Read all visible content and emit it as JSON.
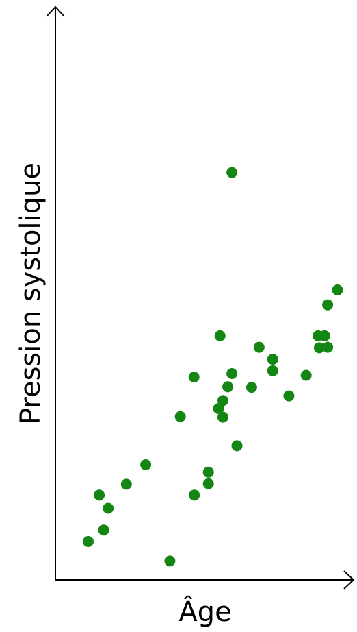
{
  "chart_data": {
    "type": "scatter",
    "title": "",
    "xlabel": "Âge",
    "ylabel": "Pression systolique",
    "xlim": [
      0,
      100
    ],
    "ylim": [
      0,
      100
    ],
    "grid": false,
    "legend": "none",
    "ticks": "none",
    "marker_color": "#138613",
    "axis_color": "#000000",
    "series": [
      {
        "points": [
          [
            11.0,
            6.7
          ],
          [
            16.2,
            8.7
          ],
          [
            14.7,
            14.8
          ],
          [
            17.7,
            12.5
          ],
          [
            23.8,
            16.7
          ],
          [
            30.3,
            20.1
          ],
          [
            38.4,
            3.3
          ],
          [
            41.9,
            28.5
          ],
          [
            46.6,
            14.8
          ],
          [
            51.3,
            16.8
          ],
          [
            51.3,
            18.8
          ],
          [
            54.7,
            29.9
          ],
          [
            46.5,
            35.4
          ],
          [
            56.2,
            28.4
          ],
          [
            56.2,
            31.3
          ],
          [
            57.8,
            33.7
          ],
          [
            59.2,
            36.0
          ],
          [
            60.9,
            23.4
          ],
          [
            65.8,
            33.6
          ],
          [
            55.2,
            42.6
          ],
          [
            68.3,
            40.6
          ],
          [
            72.9,
            38.5
          ],
          [
            72.9,
            36.5
          ],
          [
            78.3,
            32.1
          ],
          [
            84.1,
            35.7
          ],
          [
            88.5,
            40.5
          ],
          [
            88.1,
            42.6
          ],
          [
            90.3,
            42.6
          ],
          [
            91.3,
            40.6
          ],
          [
            91.3,
            48.0
          ],
          [
            94.6,
            50.6
          ],
          [
            59.2,
            71.1
          ]
        ]
      }
    ]
  }
}
